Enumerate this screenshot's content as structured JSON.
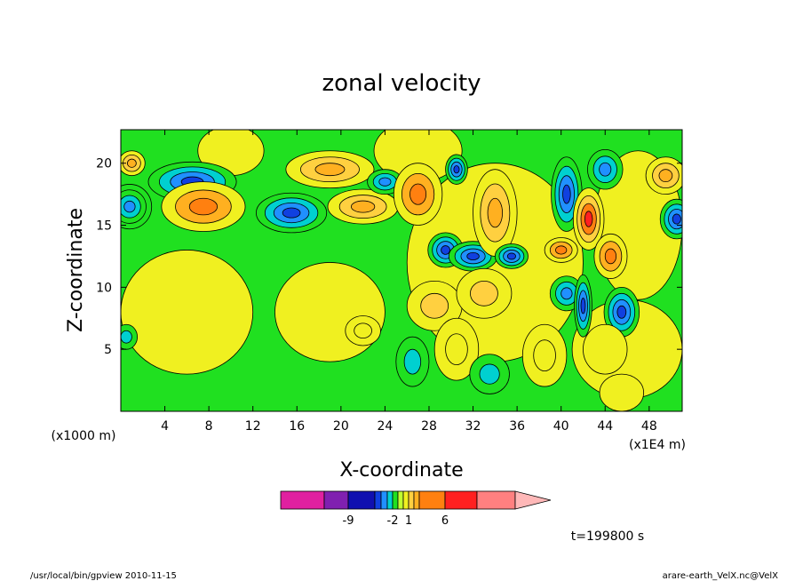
{
  "chart_data": {
    "type": "heatmap",
    "title": "zonal velocity",
    "xlabel": "X-coordinate",
    "ylabel": "Z-coordinate",
    "xunit_left": "(x1000 m)",
    "xunit_right": "(x1E4 m)",
    "xlim": [
      0,
      51
    ],
    "ylim": [
      0,
      22.7
    ],
    "xticks": [
      4,
      8,
      12,
      16,
      20,
      24,
      28,
      32,
      36,
      40,
      44,
      48
    ],
    "yticks": [
      5,
      10,
      15,
      20
    ],
    "colorbar": {
      "labels": [
        "-9",
        "-2",
        "1",
        "6"
      ],
      "label_values": [
        -9,
        -2,
        1,
        6
      ],
      "colors": [
        "#e020a0",
        "#8020b0",
        "#1010b0",
        "#1040e0",
        "#2090ff",
        "#00d0d0",
        "#20e020",
        "#c0ff30",
        "#f0f020",
        "#ffd040",
        "#ffb020",
        "#ff8010",
        "#ff2020",
        "#ff8080",
        "#ffb8b8"
      ]
    },
    "time_label": "t=199800 s",
    "blobs": [
      {
        "x": 1.0,
        "z": 20.0,
        "rx": 1.2,
        "rz": 1.0,
        "v": 5
      },
      {
        "x": 6.5,
        "z": 18.5,
        "rx": 4.0,
        "rz": 1.6,
        "v": -8
      },
      {
        "x": 0.8,
        "z": 16.5,
        "rx": 2.0,
        "rz": 1.8,
        "v": -7
      },
      {
        "x": 7.5,
        "z": 16.5,
        "rx": 3.8,
        "rz": 2.0,
        "v": 6
      },
      {
        "x": 19.0,
        "z": 19.5,
        "rx": 4.0,
        "rz": 1.5,
        "v": 5
      },
      {
        "x": 15.5,
        "z": 16.0,
        "rx": 3.2,
        "rz": 1.6,
        "v": -8
      },
      {
        "x": 22.0,
        "z": 16.5,
        "rx": 3.2,
        "rz": 1.4,
        "v": 5
      },
      {
        "x": 24.0,
        "z": 18.5,
        "rx": 1.6,
        "rz": 1.0,
        "v": -6
      },
      {
        "x": 27.0,
        "z": 17.5,
        "rx": 2.2,
        "rz": 2.5,
        "v": 6
      },
      {
        "x": 29.5,
        "z": 13.0,
        "rx": 1.6,
        "rz": 1.4,
        "v": -8
      },
      {
        "x": 32.0,
        "z": 12.5,
        "rx": 2.2,
        "rz": 1.2,
        "v": -8
      },
      {
        "x": 34.0,
        "z": 16.0,
        "rx": 2.0,
        "rz": 3.5,
        "v": 5
      },
      {
        "x": 30.5,
        "z": 19.5,
        "rx": 1.0,
        "rz": 1.2,
        "v": -8
      },
      {
        "x": 35.5,
        "z": 12.5,
        "rx": 1.5,
        "rz": 1.0,
        "v": -8
      },
      {
        "x": 40.5,
        "z": 17.5,
        "rx": 1.4,
        "rz": 3.0,
        "v": -8
      },
      {
        "x": 42.5,
        "z": 15.5,
        "rx": 1.4,
        "rz": 2.5,
        "v": 7
      },
      {
        "x": 40.0,
        "z": 13.0,
        "rx": 1.5,
        "rz": 1.0,
        "v": 6
      },
      {
        "x": 44.5,
        "z": 12.5,
        "rx": 1.5,
        "rz": 1.8,
        "v": 6
      },
      {
        "x": 44.0,
        "z": 19.5,
        "rx": 1.6,
        "rz": 1.6,
        "v": -6
      },
      {
        "x": 49.5,
        "z": 19.0,
        "rx": 1.8,
        "rz": 1.5,
        "v": 5
      },
      {
        "x": 50.5,
        "z": 15.5,
        "rx": 1.5,
        "rz": 1.6,
        "v": -8
      },
      {
        "x": 28.5,
        "z": 8.5,
        "rx": 2.5,
        "rz": 2.0,
        "v": 4
      },
      {
        "x": 33.0,
        "z": 9.5,
        "rx": 2.5,
        "rz": 2.0,
        "v": 4
      },
      {
        "x": 30.5,
        "z": 5.0,
        "rx": 2.0,
        "rz": 2.5,
        "v": 3
      },
      {
        "x": 40.5,
        "z": 9.5,
        "rx": 1.5,
        "rz": 1.4,
        "v": -6
      },
      {
        "x": 42.0,
        "z": 8.5,
        "rx": 0.8,
        "rz": 2.5,
        "v": -8
      },
      {
        "x": 45.5,
        "z": 8.0,
        "rx": 1.6,
        "rz": 2.0,
        "v": -8
      },
      {
        "x": 38.5,
        "z": 4.5,
        "rx": 2.0,
        "rz": 2.5,
        "v": 3
      },
      {
        "x": 44.0,
        "z": 5.0,
        "rx": 2.0,
        "rz": 2.0,
        "v": 2
      },
      {
        "x": 26.5,
        "z": 4.0,
        "rx": 1.5,
        "rz": 2.0,
        "v": -4
      },
      {
        "x": 33.5,
        "z": 3.0,
        "rx": 1.8,
        "rz": 1.6,
        "v": -4
      },
      {
        "x": 0.5,
        "z": 6.0,
        "rx": 1.0,
        "rz": 1.0,
        "v": -4
      },
      {
        "x": 22.0,
        "z": 6.5,
        "rx": 1.6,
        "rz": 1.2,
        "v": 3
      },
      {
        "x": 45.5,
        "z": 1.5,
        "rx": 2.0,
        "rz": 1.5,
        "v": 2
      }
    ]
  },
  "footer": {
    "left": "/usr/local/bin/gpview  2010-11-15",
    "right": "arare-earth_VelX.nc@VelX"
  }
}
